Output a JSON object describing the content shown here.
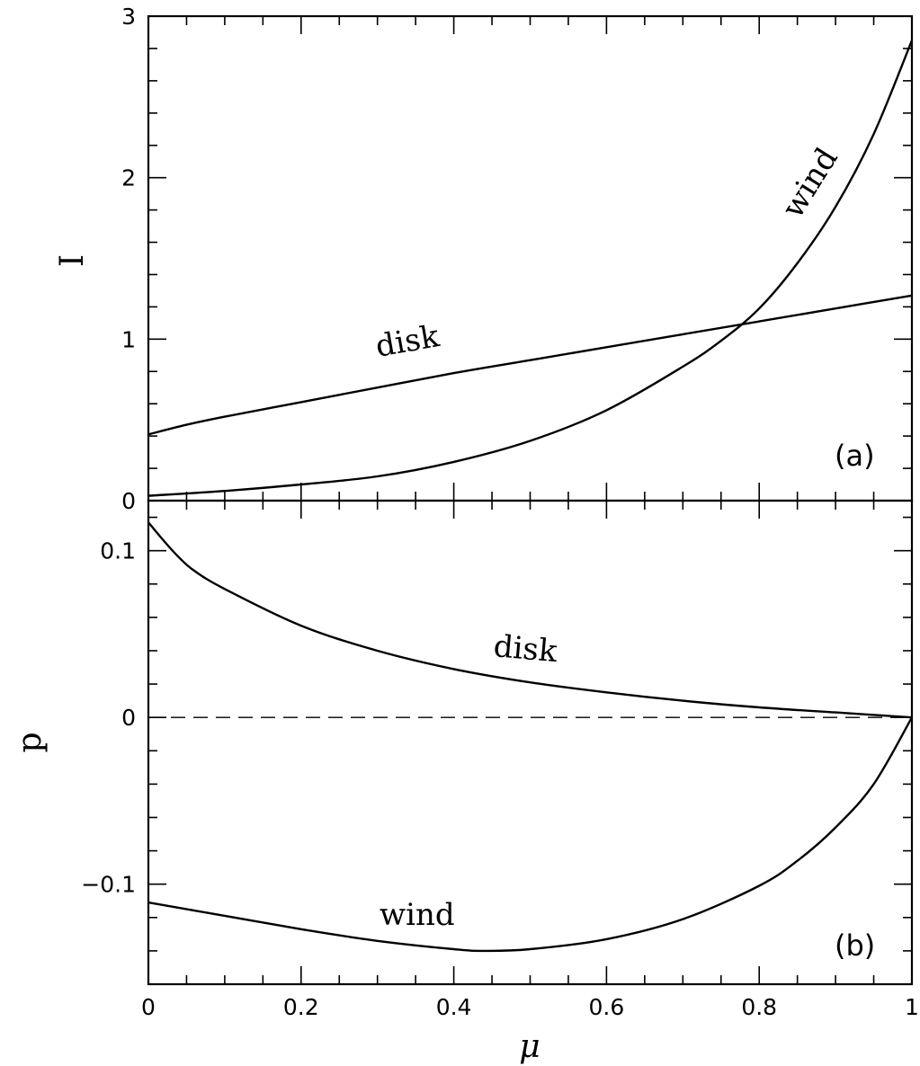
{
  "chart_data": [
    {
      "panel": "(a)",
      "type": "line",
      "xlabel": "μ",
      "ylabel": "I",
      "xlim": [
        0,
        1
      ],
      "ylim": [
        0,
        3
      ],
      "x_ticks": [
        "0",
        "0.2",
        "0.4",
        "0.6",
        "0.8",
        "1"
      ],
      "y_ticks": [
        {
          "value": 0,
          "label": "0"
        },
        {
          "value": 1,
          "label": "1"
        },
        {
          "value": 2,
          "label": "2"
        },
        {
          "value": 3,
          "label": "3"
        }
      ],
      "series": [
        {
          "name": "disk",
          "x": [
            0,
            0.05,
            0.1,
            0.2,
            0.3,
            0.4,
            0.5,
            0.6,
            0.7,
            0.8,
            0.9,
            1.0
          ],
          "y": [
            0.41,
            0.47,
            0.52,
            0.61,
            0.7,
            0.79,
            0.87,
            0.95,
            1.03,
            1.11,
            1.19,
            1.27
          ]
        },
        {
          "name": "wind",
          "x": [
            0,
            0.1,
            0.2,
            0.3,
            0.4,
            0.5,
            0.6,
            0.7,
            0.75,
            0.8,
            0.85,
            0.9,
            0.95,
            1.0
          ],
          "y": [
            0.03,
            0.06,
            0.1,
            0.15,
            0.24,
            0.37,
            0.56,
            0.83,
            0.99,
            1.19,
            1.47,
            1.82,
            2.27,
            2.85
          ]
        }
      ],
      "annotations": [
        "disk",
        "wind"
      ]
    },
    {
      "panel": "(b)",
      "type": "line",
      "xlabel": "μ",
      "ylabel": "p",
      "xlim": [
        0,
        1
      ],
      "ylim": [
        -0.16,
        0.13
      ],
      "x_ticks": [
        "0",
        "0.2",
        "0.4",
        "0.6",
        "0.8",
        "1"
      ],
      "y_ticks": [
        {
          "value": -0.1,
          "label": "−0.1"
        },
        {
          "value": 0,
          "label": "0"
        },
        {
          "value": 0.1,
          "label": "0.1"
        }
      ],
      "reference_line": {
        "y": 0,
        "style": "dashed"
      },
      "series": [
        {
          "name": "disk",
          "x": [
            0,
            0.02,
            0.04,
            0.06,
            0.1,
            0.2,
            0.3,
            0.4,
            0.5,
            0.6,
            0.7,
            0.8,
            0.9,
            1.0
          ],
          "y": [
            0.117,
            0.106,
            0.096,
            0.088,
            0.077,
            0.055,
            0.04,
            0.029,
            0.021,
            0.015,
            0.01,
            0.006,
            0.003,
            0.0
          ]
        },
        {
          "name": "wind",
          "x": [
            0,
            0.1,
            0.2,
            0.3,
            0.4,
            0.44,
            0.5,
            0.6,
            0.7,
            0.8,
            0.85,
            0.9,
            0.95,
            1.0
          ],
          "y": [
            -0.111,
            -0.119,
            -0.127,
            -0.134,
            -0.139,
            -0.14,
            -0.139,
            -0.133,
            -0.121,
            -0.101,
            -0.086,
            -0.066,
            -0.04,
            0.0
          ]
        }
      ],
      "annotations": [
        "disk",
        "wind"
      ]
    }
  ]
}
